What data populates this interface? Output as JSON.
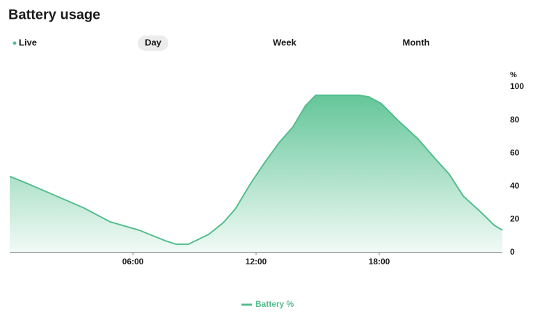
{
  "tabs": [
    "Live",
    "Day",
    "Week",
    "Month"
  ],
  "selected_tab": 1,
  "chart_data": {
    "type": "area",
    "title": "Battery usage",
    "y_label": "%",
    "x": [
      0,
      0.8,
      2.2,
      3.6,
      4.9,
      6.3,
      7.6,
      8.1,
      8.7,
      9.7,
      10.4,
      11,
      11.7,
      12.4,
      13.1,
      13.8,
      14.4,
      14.9,
      17,
      17.5,
      18.1,
      18.9,
      19.9,
      20.7,
      21.4,
      22.1,
      22.9,
      23.6,
      24
    ],
    "series": [
      {
        "name": "Battery %",
        "color": "#52bd8c",
        "values": [
          46,
          42,
          34.5,
          27,
          18.5,
          13.5,
          7,
          5,
          5,
          11,
          18,
          26.5,
          41,
          54,
          66,
          76,
          88.5,
          95,
          95,
          94,
          90,
          80,
          68.5,
          57,
          47.5,
          34,
          25,
          16.5,
          13.5
        ]
      }
    ],
    "xlim": [
      0,
      24
    ],
    "xticks": [
      {
        "value": 6,
        "label": "06:00"
      },
      {
        "value": 12,
        "label": "12:00"
      },
      {
        "value": 18,
        "label": "18:00"
      }
    ],
    "ylim": [
      0,
      100
    ],
    "yticks": [
      0,
      20,
      40,
      60,
      80,
      100
    ],
    "grid": false,
    "legend": "bottom"
  }
}
